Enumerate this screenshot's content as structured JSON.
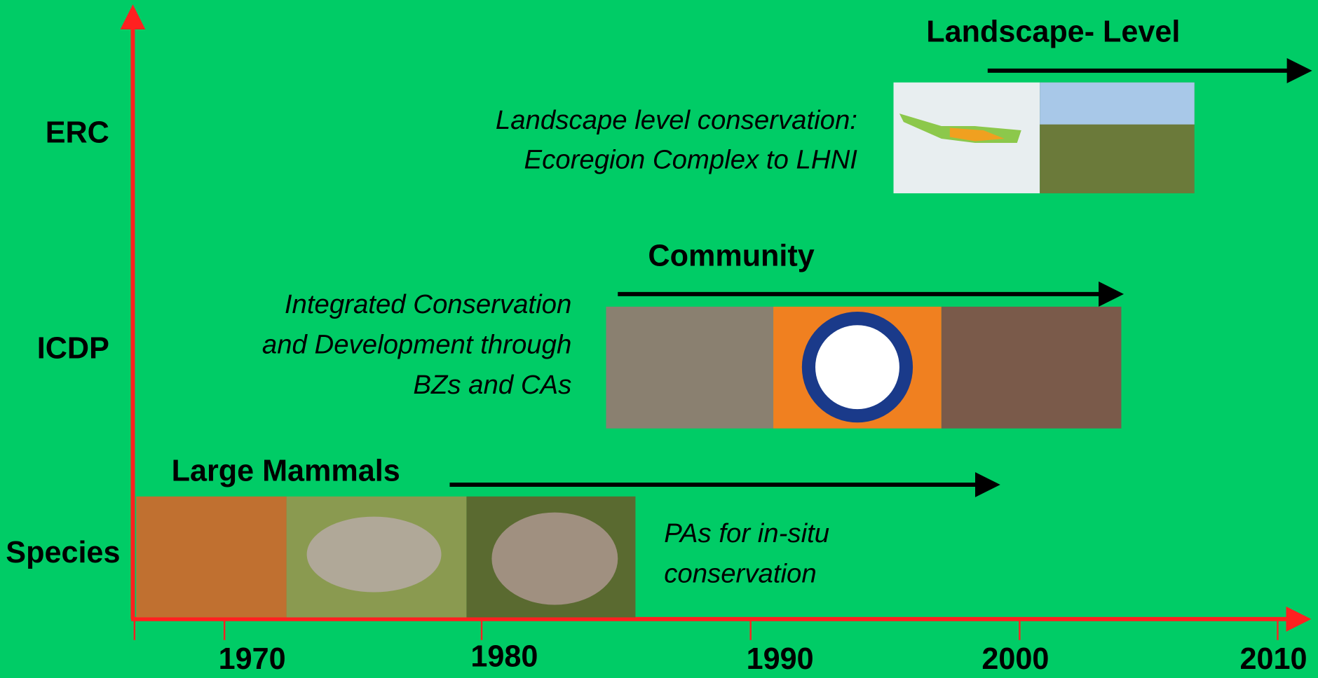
{
  "y_axis": {
    "labels": [
      "ERC",
      "ICDP",
      "Species"
    ]
  },
  "x_axis": {
    "labels": [
      "1970",
      "1980",
      "1990",
      "2000",
      "2010"
    ]
  },
  "levels": [
    {
      "heading": "Landscape- Level",
      "description": [
        "Landscape level conservation:",
        "Ecoregion Complex to LHNI"
      ]
    },
    {
      "heading": "Community",
      "description": [
        "Integrated Conservation",
        "and Development through",
        "BZs and CAs"
      ]
    },
    {
      "heading": "Large Mammals",
      "description": [
        "PAs for in-situ",
        "conservation"
      ]
    }
  ]
}
